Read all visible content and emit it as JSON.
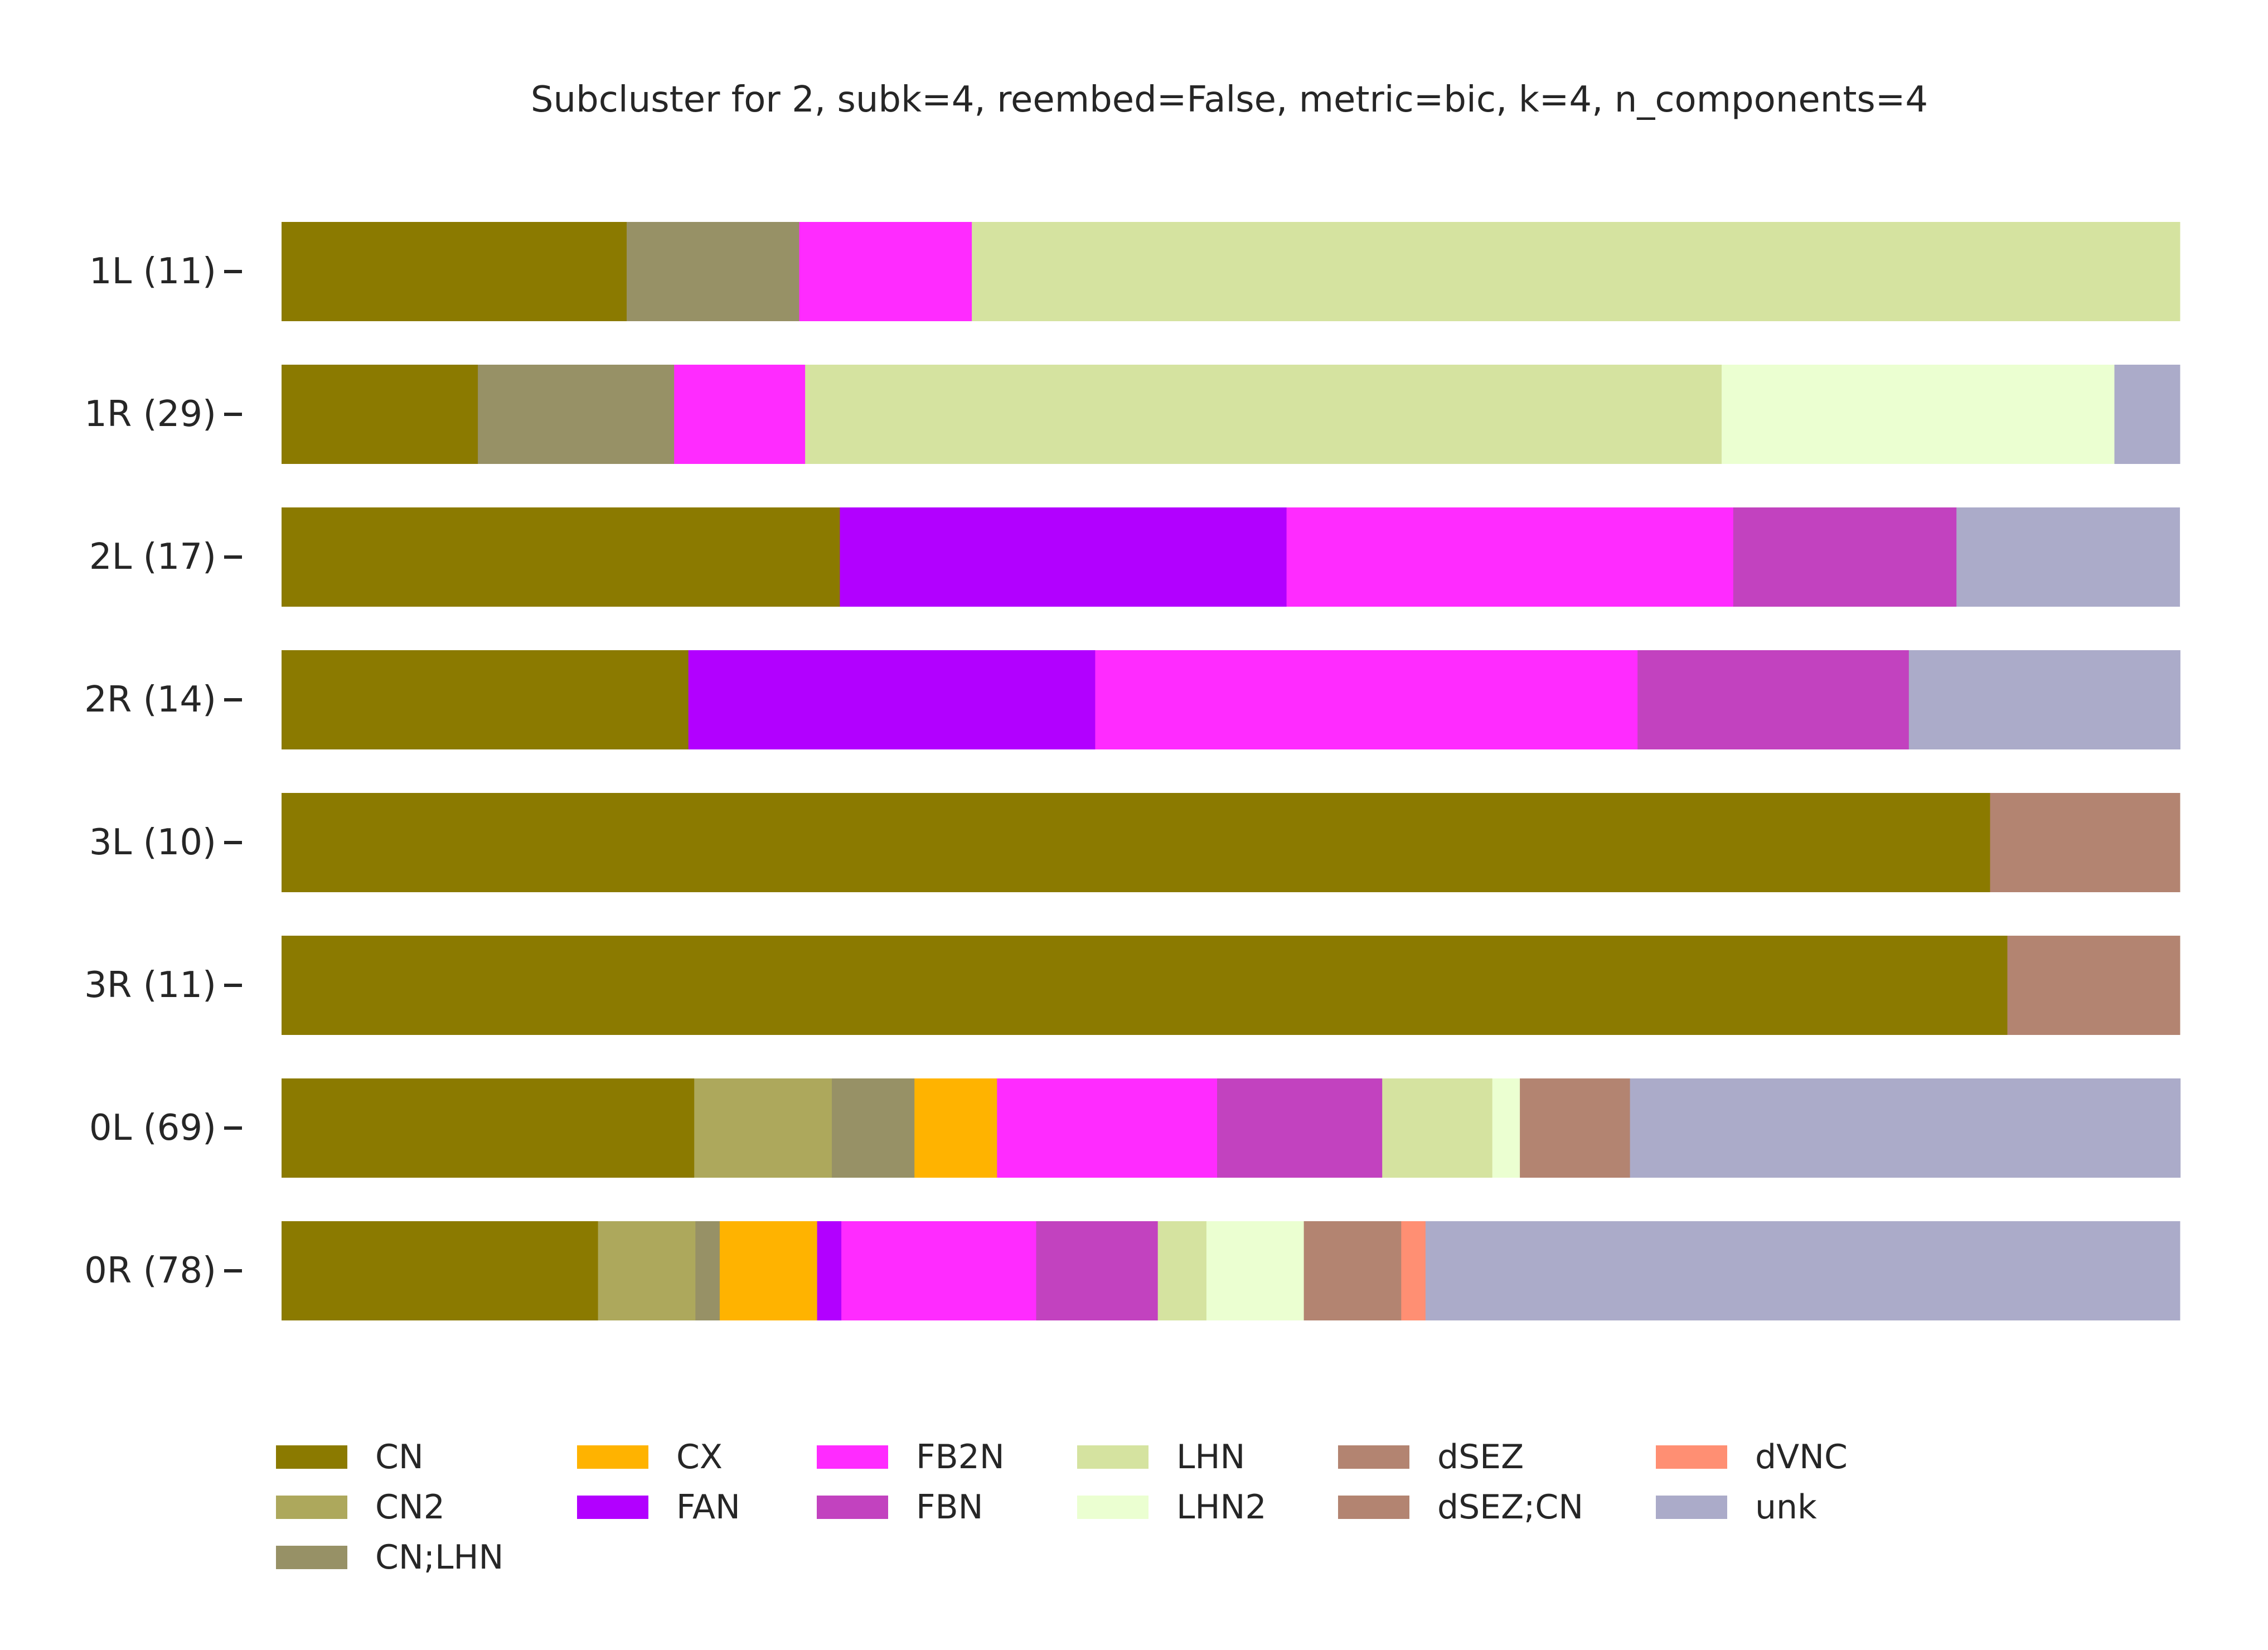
{
  "chart_data": {
    "type": "bar",
    "orientation": "horizontal",
    "stacked": true,
    "normalized": true,
    "title": "Subcluster for 2, subk=4, reembed=False, metric=bic, k=4, n_components=4",
    "xlabel": "",
    "ylabel": "",
    "xlim": [
      0,
      1
    ],
    "grid": false,
    "legend_position": "bottom",
    "categories": [
      "1L (11)",
      "1R (29)",
      "2L (17)",
      "2R (14)",
      "3L (10)",
      "3R (11)",
      "0L (69)",
      "0R (78)"
    ],
    "series": [
      {
        "name": "CN",
        "color": "#8b7a00",
        "values": [
          0.1818,
          0.1034,
          0.2941,
          0.2143,
          0.9,
          0.9091,
          0.2174,
          0.1667
        ]
      },
      {
        "name": "CN2",
        "color": "#ada85c",
        "values": [
          0,
          0,
          0,
          0,
          0,
          0,
          0.0725,
          0.0513
        ]
      },
      {
        "name": "CN;LHN",
        "color": "#979166",
        "values": [
          0.0909,
          0.1034,
          0,
          0,
          0,
          0,
          0.0435,
          0.0128
        ]
      },
      {
        "name": "CX",
        "color": "#ffb300",
        "values": [
          0,
          0,
          0,
          0,
          0,
          0,
          0.0435,
          0.0513
        ]
      },
      {
        "name": "FAN",
        "color": "#b200ff",
        "values": [
          0,
          0,
          0.2353,
          0.2143,
          0,
          0,
          0,
          0.0128
        ]
      },
      {
        "name": "FB2N",
        "color": "#ff2bff",
        "values": [
          0.0909,
          0.069,
          0.2353,
          0.2857,
          0,
          0,
          0.1159,
          0.1026
        ]
      },
      {
        "name": "FBN",
        "color": "#c242bf",
        "values": [
          0,
          0,
          0.1176,
          0.1429,
          0,
          0,
          0.087,
          0.0641
        ]
      },
      {
        "name": "LHN",
        "color": "#d5e3a0",
        "values": [
          0.6364,
          0.4828,
          0,
          0,
          0,
          0,
          0.058,
          0.0256
        ]
      },
      {
        "name": "LHN2",
        "color": "#ebffd1",
        "values": [
          0,
          0.2069,
          0,
          0,
          0,
          0,
          0.0145,
          0.0513
        ]
      },
      {
        "name": "dSEZ",
        "color": "#b38471",
        "values": [
          0,
          0,
          0,
          0,
          0.1,
          0.0909,
          0.058,
          0.0513
        ]
      },
      {
        "name": "dSEZ;CN",
        "color": "#b38471",
        "values": [
          0,
          0,
          0,
          0,
          0,
          0,
          0,
          0
        ]
      },
      {
        "name": "dVNC",
        "color": "#ff8f73",
        "values": [
          0,
          0,
          0,
          0,
          0,
          0,
          0,
          0.0128
        ]
      },
      {
        "name": "unk",
        "color": "#ababc9",
        "values": [
          0,
          0.0345,
          0.1176,
          0.1429,
          0,
          0,
          0.2899,
          0.3974
        ]
      }
    ],
    "legend_columns": [
      [
        "CN",
        "CN2",
        "CN;LHN"
      ],
      [
        "CX",
        "FAN"
      ],
      [
        "FB2N",
        "FBN"
      ],
      [
        "LHN",
        "LHN2"
      ],
      [
        "dSEZ",
        "dSEZ;CN"
      ],
      [
        "dVNC",
        "unk"
      ]
    ]
  }
}
